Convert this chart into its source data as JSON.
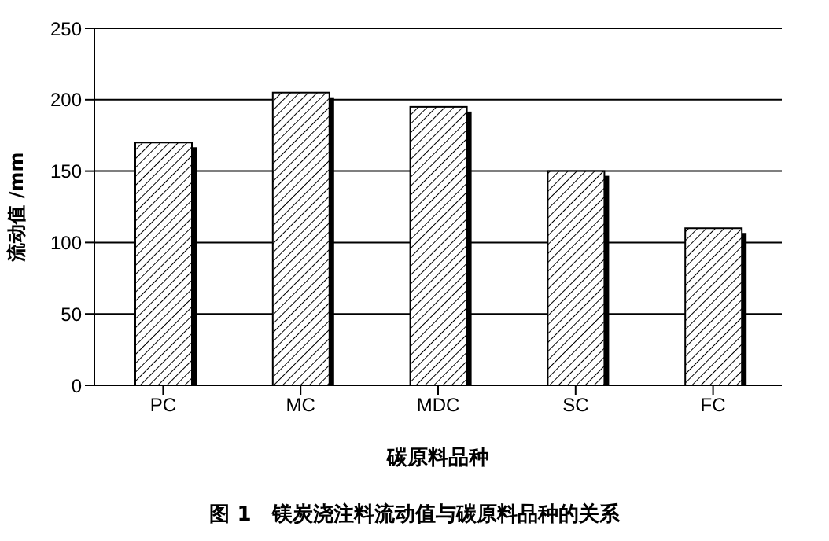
{
  "chart_data": {
    "type": "bar",
    "title": "图 1　镁炭浇注料流动值与碳原料品种的关系",
    "xlabel": "碳原料品种",
    "ylabel": "流动值 /mm",
    "categories": [
      "PC",
      "MC",
      "MDC",
      "SC",
      "FC"
    ],
    "values": [
      170,
      205,
      195,
      150,
      110
    ],
    "color": "#000000",
    "ylim": [
      0,
      250
    ],
    "yticks": [
      0,
      50,
      100,
      150,
      200,
      250
    ],
    "grid": "y"
  }
}
